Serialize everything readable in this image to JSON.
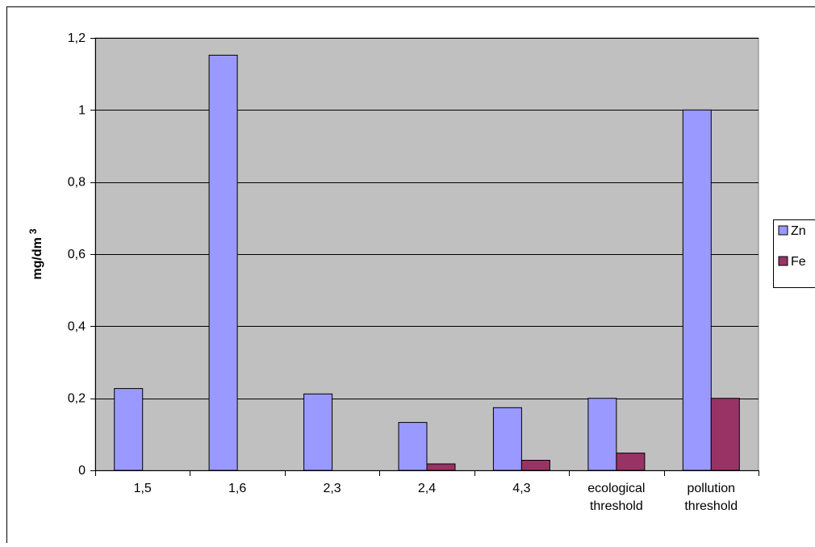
{
  "chart_data": {
    "type": "bar",
    "title": "",
    "xlabel": "",
    "ylabel": "mg/dm",
    "ylabel_superscript": "3",
    "categories": [
      [
        "1,5"
      ],
      [
        "1,6"
      ],
      [
        "2,3"
      ],
      [
        "2,4"
      ],
      [
        "4,3"
      ],
      [
        "ecological",
        "threshold"
      ],
      [
        "pollution",
        "threshold"
      ]
    ],
    "series": [
      {
        "name": "Zn",
        "color": "#9999ff",
        "values": [
          0.227,
          1.152,
          0.212,
          0.133,
          0.174,
          0.2,
          1.0
        ]
      },
      {
        "name": "Fe",
        "color": "#993366",
        "values": [
          null,
          null,
          null,
          0.018,
          0.028,
          0.048,
          0.2
        ]
      }
    ],
    "ylim": [
      0,
      1.2
    ],
    "yticks": [
      "0",
      "0,2",
      "0,4",
      "0,6",
      "0,8",
      "1",
      "1,2"
    ],
    "ytick_values": [
      0,
      0.2,
      0.4,
      0.6,
      0.8,
      1.0,
      1.2
    ],
    "grid": true,
    "plot_background": "#c0c0c0",
    "legend_position": "right"
  }
}
